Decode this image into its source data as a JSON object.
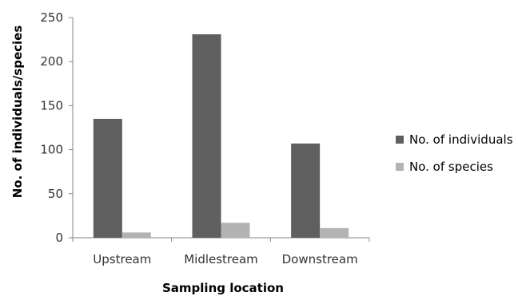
{
  "chart_data": {
    "type": "bar",
    "categories": [
      "Upstream",
      "Midlestream",
      "Downstream"
    ],
    "series": [
      {
        "name": "No. of individuals",
        "values": [
          135,
          231,
          107
        ],
        "color": "#5f5f5f"
      },
      {
        "name": "No. of species",
        "values": [
          6,
          17,
          11
        ],
        "color": "#b3b3b3"
      }
    ],
    "title": "",
    "xlabel": "Sampling location",
    "ylabel": "No. of individuals/species",
    "ylim": [
      0,
      250
    ],
    "yticks": [
      "0",
      "50",
      "100",
      "150",
      "200",
      "250"
    ],
    "grid": false,
    "legend_position": "right"
  }
}
